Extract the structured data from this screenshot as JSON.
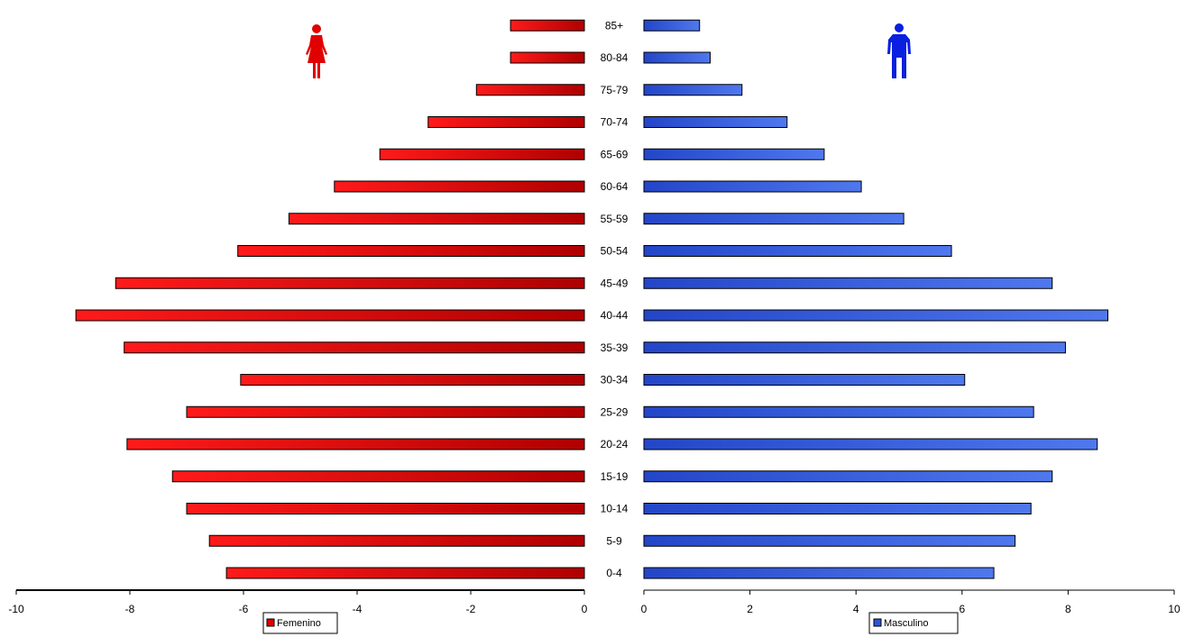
{
  "chart_data": {
    "type": "bar",
    "orientation": "horizontal",
    "layout": "population-pyramid",
    "categories": [
      "0-4",
      "5-9",
      "10-14",
      "15-19",
      "20-24",
      "25-29",
      "30-34",
      "35-39",
      "40-44",
      "45-49",
      "50-54",
      "55-59",
      "60-64",
      "65-69",
      "70-74",
      "75-79",
      "80-84",
      "85+"
    ],
    "series": [
      {
        "name": "Femenino",
        "color": "#e00000",
        "values": [
          -6.3,
          -6.6,
          -7.0,
          -7.25,
          -8.05,
          -7.0,
          -6.05,
          -8.1,
          -8.95,
          -8.25,
          -6.1,
          -5.2,
          -4.4,
          -3.6,
          -2.75,
          -1.9,
          -1.3,
          -1.3
        ]
      },
      {
        "name": "Masculino",
        "color": "#2f56d8",
        "values": [
          6.6,
          7.0,
          7.3,
          7.7,
          8.55,
          7.35,
          6.05,
          7.95,
          8.75,
          7.7,
          5.8,
          4.9,
          4.1,
          3.4,
          2.7,
          1.85,
          1.25,
          1.05
        ]
      }
    ],
    "left_axis": {
      "min": -10,
      "max": 0,
      "ticks": [
        "-10",
        "-8",
        "-6",
        "-4",
        "-2",
        "0"
      ]
    },
    "right_axis": {
      "min": 0,
      "max": 10,
      "ticks": [
        "0",
        "2",
        "4",
        "6",
        "8",
        "10"
      ]
    },
    "legend": {
      "left": {
        "label": "Femenino",
        "position": "bottom-center-left"
      },
      "right": {
        "label": "Masculino",
        "position": "bottom-center-right"
      }
    },
    "icons": {
      "left": "female-figure-icon",
      "right": "male-figure-icon"
    },
    "grid": false
  }
}
